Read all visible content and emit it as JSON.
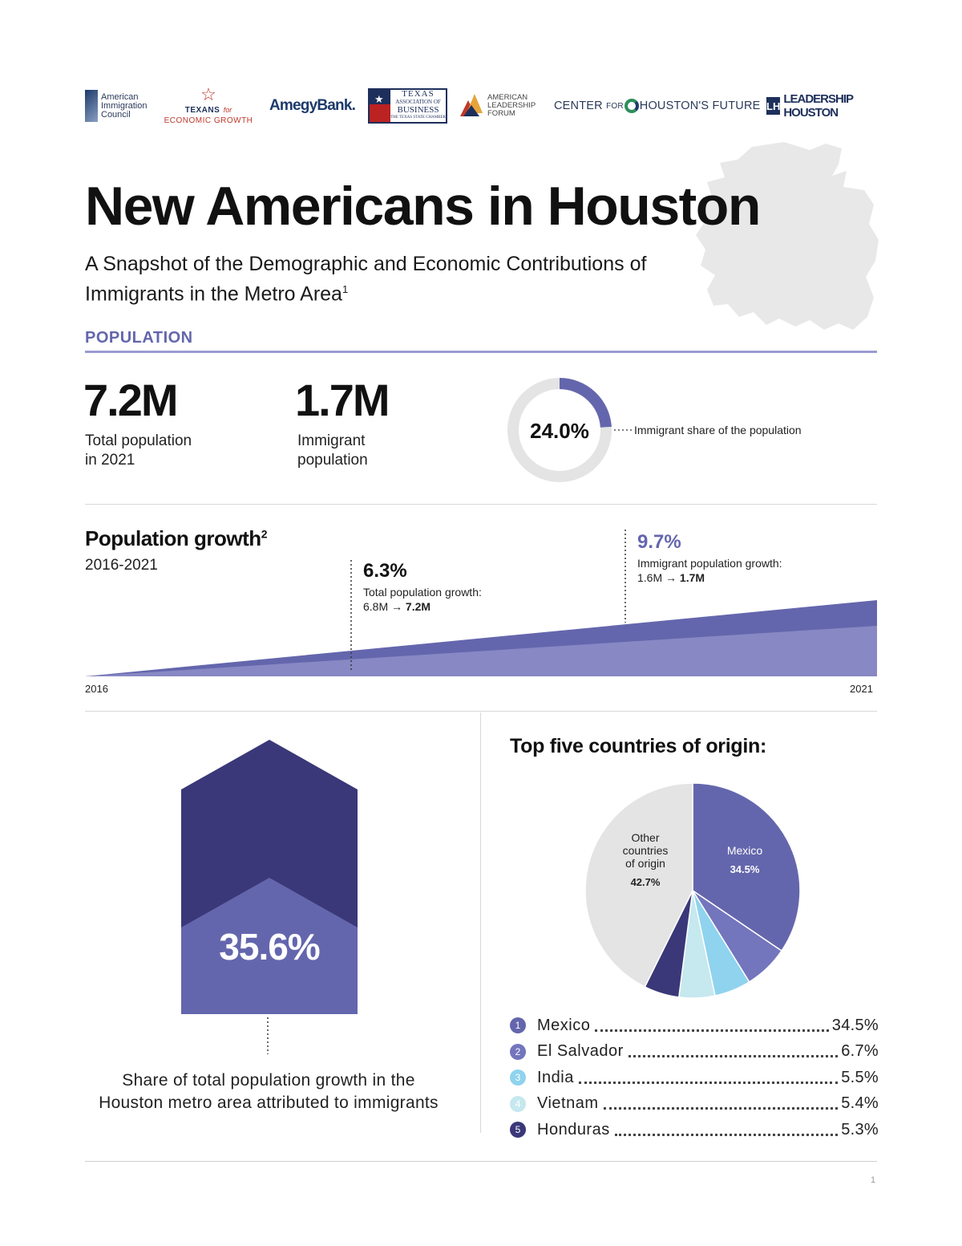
{
  "logos": {
    "aic": "American Immigration Council",
    "teg_line1": "TEXANS",
    "teg_for": "for",
    "teg_line2": "ECONOMIC GROWTH",
    "amegy": "AmegyBank.",
    "tab_line1": "TEXAS",
    "tab_line2": "ASSOCIATION OF",
    "tab_line3": "BUSINESS",
    "tab_line4": "THE TEXAS STATE CHAMBER",
    "alf": "AMERICAN LEADERSHIP FORUM",
    "chf_center": "CENTER",
    "chf_for": "FOR",
    "chf_houston": "HOUSTON'S FUTURE",
    "lh_mark": "LH",
    "lh_text": "LEADERSHIP HOUSTON"
  },
  "header": {
    "title": "New Americans in Houston",
    "subtitle": "A Snapshot of the Demographic and Economic Contributions of Immigrants in the Metro Area",
    "subtitle_footnote": "1"
  },
  "population": {
    "section_label": "POPULATION",
    "total_value": "7.2M",
    "total_label_1": "Total population",
    "total_label_2": "in 2021",
    "immigrant_value": "1.7M",
    "immigrant_label_1": "Immigrant",
    "immigrant_label_2": "population",
    "share_value": "24.0%",
    "share_fraction": 0.24,
    "share_label": "Immigrant share of the population"
  },
  "growth": {
    "title": "Population growth",
    "title_footnote": "2",
    "years": "2016-2021",
    "total_pct": "6.3%",
    "total_label": "Total population growth:",
    "total_from": "6.8M",
    "arrow": "→",
    "total_to": "7.2M",
    "imm_pct": "9.7%",
    "imm_label": "Immigrant population growth:",
    "imm_from": "1.6M",
    "imm_to": "1.7M",
    "start_year": "2016",
    "end_year": "2021"
  },
  "share_growth": {
    "value": "35.6%",
    "fraction": 0.356,
    "caption": "Share of total population growth in the Houston metro area attributed to immigrants"
  },
  "chart_data": {
    "type": "pie",
    "title": "Top five countries of origin:",
    "slices": [
      {
        "name": "Mexico",
        "value": 34.5,
        "color": "#6466ad"
      },
      {
        "name": "El Salvador",
        "value": 6.7,
        "color": "#7375bd"
      },
      {
        "name": "India",
        "value": 5.5,
        "color": "#8fd3ee"
      },
      {
        "name": "Vietnam",
        "value": 5.4,
        "color": "#c6e8ef"
      },
      {
        "name": "Honduras",
        "value": 5.3,
        "color": "#3a3878"
      },
      {
        "name": "Other countries of origin",
        "value": 42.7,
        "color": "#e4e4e4"
      }
    ],
    "label_mexico_name": "Mexico",
    "label_mexico_value": "34.5%",
    "label_other_l1": "Other",
    "label_other_l2": "countries",
    "label_other_l3": "of origin",
    "label_other_value": "42.7%"
  },
  "legend": [
    {
      "num": "1",
      "name": "Mexico",
      "value": "34.5%",
      "color": "#6466ad"
    },
    {
      "num": "2",
      "name": "El Salvador",
      "value": "6.7%",
      "color": "#7375bd"
    },
    {
      "num": "3",
      "name": "India",
      "value": "5.5%",
      "color": "#8fd3ee"
    },
    {
      "num": "4",
      "name": "Vietnam",
      "value": "5.4%",
      "color": "#c6e8ef"
    },
    {
      "num": "5",
      "name": "Honduras",
      "value": "5.3%",
      "color": "#3a3878"
    }
  ],
  "footer": {
    "page_number": "1"
  },
  "colors": {
    "accent": "#6466ad",
    "dark_purple": "#3a3878",
    "light_purple": "#8788c4",
    "gray": "#e4e4e4"
  }
}
